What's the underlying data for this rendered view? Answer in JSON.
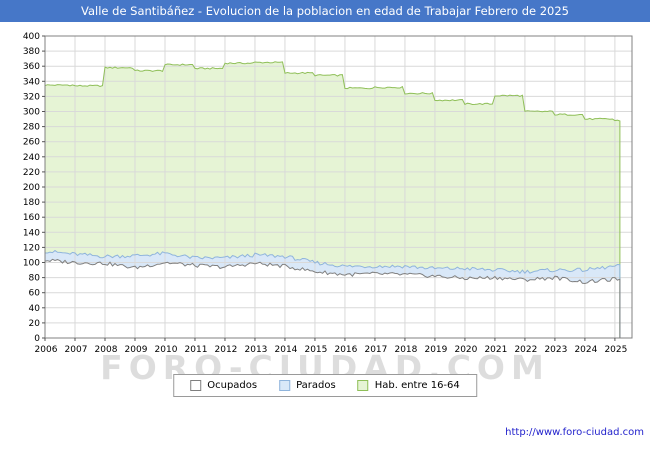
{
  "title": "Valle de Santibáñez - Evolucion de la poblacion en edad de Trabajar Febrero de 2025",
  "watermark": "FORO-CIUDAD.COM",
  "footer_url": "http://www.foro-ciudad.com",
  "colors": {
    "titlebar": "#4677c8",
    "grid": "#d9d9d9",
    "plot_border": "#808080",
    "axis_text": "#000000",
    "url_link": "#2222cc"
  },
  "legend": {
    "items": [
      {
        "label": "Ocupados",
        "fill": "#ffffff",
        "border": "#7f7f7f"
      },
      {
        "label": "Parados",
        "fill": "#d9e8f8",
        "border": "#8fb4dc"
      },
      {
        "label": "Hab. entre 16-64",
        "fill": "#e6f4d5",
        "border": "#8fbf58"
      }
    ]
  },
  "chart_data": {
    "type": "area",
    "title": "Valle de Santibáñez - Evolucion de la poblacion en edad de Trabajar Febrero de 2025",
    "xlabel": "",
    "ylabel": "",
    "ylim": [
      0,
      400
    ],
    "ytick_step": 20,
    "y_ticks": [
      0,
      20,
      40,
      60,
      80,
      100,
      120,
      140,
      160,
      180,
      200,
      220,
      240,
      260,
      280,
      300,
      320,
      340,
      360,
      380,
      400
    ],
    "x_years": [
      2006,
      2007,
      2008,
      2009,
      2010,
      2011,
      2012,
      2013,
      2014,
      2015,
      2016,
      2017,
      2018,
      2019,
      2020,
      2021,
      2022,
      2023,
      2024,
      2025
    ],
    "x_end": 2025.17,
    "grid": true,
    "legend_position": "bottom",
    "series": [
      {
        "name": "Hab. entre 16-64",
        "interp": "step",
        "jitter": 2,
        "fill": "#e6f4d5",
        "stroke": "#8fbf58",
        "values": [
          335,
          334,
          358,
          354,
          362,
          357,
          364,
          365,
          351,
          348,
          331,
          332,
          324,
          315,
          310,
          321,
          300,
          296,
          290,
          288
        ]
      },
      {
        "name": "Parados",
        "interp": "linear",
        "jitter": 5,
        "stack_on": "Ocupados",
        "fill": "#d9e8f8",
        "stroke": "#8fb4dc",
        "values": [
          12,
          11,
          9,
          16,
          12,
          10,
          12,
          11,
          13,
          12,
          11,
          10,
          11,
          10,
          13,
          10,
          11,
          10,
          16,
          17
        ]
      },
      {
        "name": "Ocupados",
        "interp": "linear",
        "jitter": 5,
        "fill": "#ffffff",
        "stroke": "#7f7f7f",
        "values": [
          103,
          100,
          99,
          93,
          100,
          96,
          94,
          99,
          95,
          88,
          84,
          85,
          84,
          82,
          79,
          80,
          77,
          80,
          74,
          78
        ]
      }
    ]
  }
}
